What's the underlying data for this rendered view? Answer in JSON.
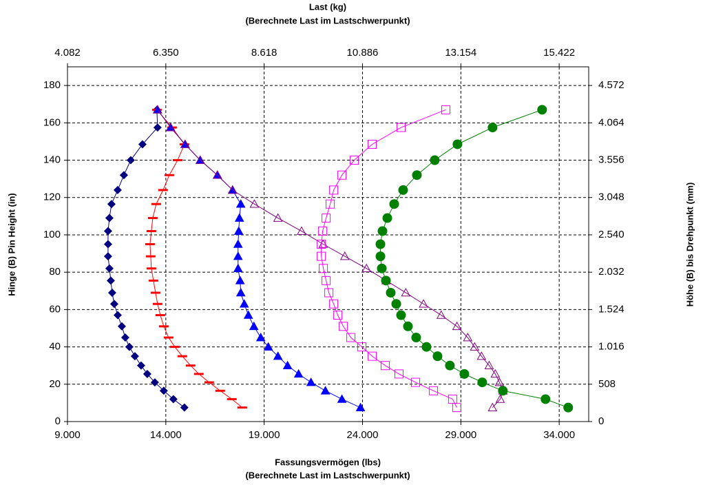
{
  "chart_data": {
    "type": "scatter",
    "title": "Last (kg)",
    "subtitle": "(Berechnete Last im Lastschwerpunkt)",
    "xlabel": "Fassungsvermögen (lbs)",
    "xlabel_sub": "(Berechnete Last im Lastschwerpunkt)",
    "ylabel": "Hinge (B) Pin Height (in)",
    "y2label": "Höhe (B) bis Drehpunkt (mm)",
    "xlim": [
      9000,
      35500
    ],
    "xticks": [
      {
        "value": 9000,
        "label": "9.000"
      },
      {
        "value": 14000,
        "label": "14.000"
      },
      {
        "value": 19000,
        "label": "19.000"
      },
      {
        "value": 24000,
        "label": "24.000"
      },
      {
        "value": 29000,
        "label": "29.000"
      },
      {
        "value": 34000,
        "label": "34.000"
      }
    ],
    "x2lim": [
      4.082,
      16.103
    ],
    "x2ticks": [
      4.082,
      {
        "value": 6.35,
        "label": "6.350"
      },
      8.618,
      10.886,
      13.154,
      15.422
    ],
    "ylim": [
      0,
      190
    ],
    "yticks": [
      0,
      20,
      40,
      60,
      80,
      100,
      120,
      140,
      160,
      180
    ],
    "y2lim": [
      0,
      4826
    ],
    "y2ticks": [
      0,
      508,
      {
        "value": 1016,
        "label": "1.016"
      },
      {
        "value": 1524,
        "label": "1.524"
      },
      {
        "value": 2032,
        "label": "2.032"
      },
      {
        "value": 2540,
        "label": "2.540"
      },
      {
        "value": 3048,
        "label": "3.048"
      },
      {
        "value": 3556,
        "label": "3.556"
      },
      {
        "value": 4064,
        "label": "4.064"
      },
      {
        "value": 4572,
        "label": "4.572"
      }
    ],
    "grid": true,
    "series": [
      {
        "color": "#000080",
        "marker": "diamond",
        "x": [
          14945,
          14385,
          13896,
          13441,
          13057,
          12742,
          12427,
          12147,
          11938,
          11763,
          11553,
          11378,
          11273,
          11203,
          11133,
          11063,
          11063,
          11063,
          11133,
          11238,
          11553,
          11868,
          12217,
          12812,
          13581,
          13546
        ],
        "values": [
          7.5,
          12,
          16.5,
          21,
          25.5,
          30,
          35,
          40,
          45,
          51,
          57,
          63,
          69,
          75.5,
          82,
          88.5,
          95,
          102,
          109,
          116.5,
          124,
          132,
          140,
          148.5,
          157.5,
          167
        ]
      },
      {
        "color": "#ff0000",
        "marker": "dash",
        "x": [
          17883,
          17358,
          16763,
          16204,
          15679,
          15260,
          14840,
          14455,
          14141,
          13896,
          13721,
          13581,
          13476,
          13371,
          13266,
          13231,
          13196,
          13266,
          13336,
          13511,
          13861,
          14176,
          14600,
          14945,
          14315,
          13546
        ],
        "values": [
          7.5,
          12,
          16.5,
          21,
          25.5,
          30,
          35,
          40,
          45,
          51,
          57,
          63,
          69,
          75.5,
          82,
          88.5,
          95,
          102,
          109,
          116.5,
          124,
          132,
          140,
          148.5,
          157.5,
          167
        ]
      },
      {
        "color": "#0000ff",
        "marker": "triangle",
        "x": [
          23897,
          22953,
          22114,
          21380,
          20750,
          20190,
          19701,
          19211,
          18827,
          18477,
          18197,
          17987,
          17812,
          17777,
          17673,
          17673,
          17673,
          17707,
          17743,
          17812,
          17393,
          16623,
          15749,
          14980,
          14245,
          13581
        ],
        "values": [
          7.5,
          12,
          16.5,
          21,
          25.5,
          30,
          35,
          40,
          45,
          51,
          57,
          63,
          69,
          75.5,
          82,
          88.5,
          95,
          102,
          109,
          116.5,
          124,
          132,
          140,
          148.5,
          157.5,
          167
        ]
      },
      {
        "color": "#800080",
        "marker": "open-triangle",
        "x": [
          30610,
          31000,
          31140,
          30960,
          30750,
          30440,
          30050,
          29700,
          29350,
          28800,
          28000,
          27100,
          26200,
          25200,
          24200,
          23100,
          22000,
          20900,
          19700,
          18500,
          17393,
          16623,
          15749,
          14980,
          14245,
          13581
        ],
        "values": [
          7.5,
          12,
          16.5,
          21,
          25.5,
          30,
          35,
          40,
          45,
          51,
          57,
          63,
          69,
          75.5,
          82,
          88.5,
          95,
          102,
          109,
          116.5,
          124,
          132,
          140,
          148.5,
          157.5,
          167
        ]
      },
      {
        "color": "#ff00ff",
        "marker": "open-square",
        "x": [
          28793,
          28583,
          27604,
          26695,
          25855,
          25155,
          24491,
          23967,
          23408,
          23023,
          22743,
          22533,
          22289,
          22149,
          22009,
          21904,
          21904,
          21974,
          22149,
          22359,
          22533,
          22953,
          23582,
          24491,
          25960,
          28233
        ],
        "values": [
          7.5,
          12,
          16.5,
          21,
          25.5,
          30,
          35,
          40,
          45,
          51,
          57,
          63,
          69,
          75.5,
          82,
          88.5,
          95,
          102,
          109,
          116.5,
          124,
          132,
          140,
          148.5,
          157.5,
          167
        ]
      },
      {
        "color": "#008000",
        "marker": "circle",
        "x": [
          34458,
          33304,
          31136,
          30087,
          29178,
          28443,
          27814,
          27254,
          26729,
          26310,
          25960,
          25715,
          25435,
          25191,
          24981,
          24911,
          24911,
          25016,
          25261,
          25610,
          26065,
          26765,
          27674,
          28828,
          30612,
          33130
        ],
        "values": [
          7.5,
          12,
          16.5,
          21,
          25.5,
          30,
          35,
          40,
          45,
          51,
          57,
          63,
          69,
          75.5,
          82,
          88.5,
          95,
          102,
          109,
          116.5,
          124,
          132,
          140,
          148.5,
          157.5,
          167
        ]
      }
    ]
  }
}
